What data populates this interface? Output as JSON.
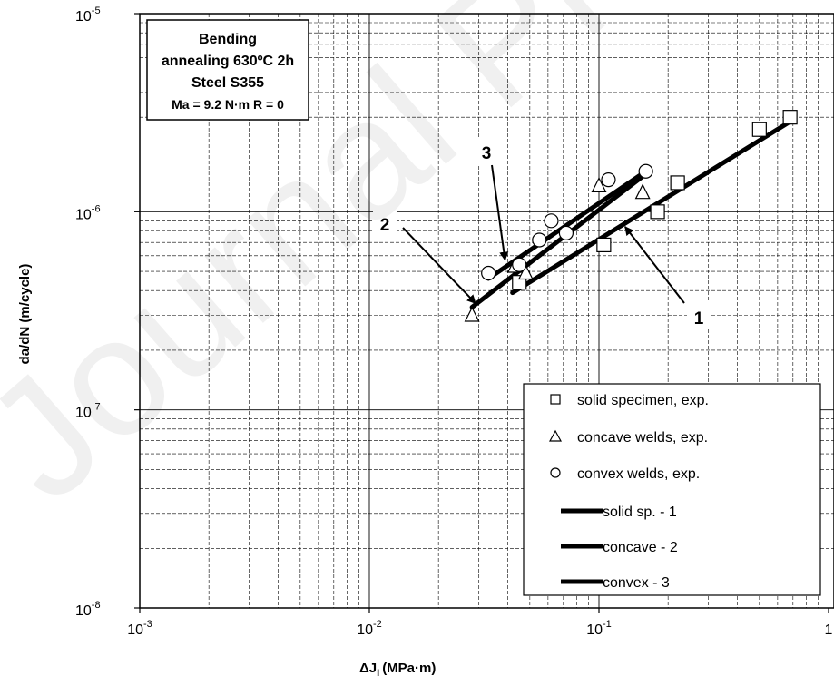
{
  "chart_data": {
    "type": "scatter",
    "xscale": "log",
    "yscale": "log",
    "xlim": [
      0.001,
      1
    ],
    "ylim": [
      1e-08,
      1e-05
    ],
    "xlabel": "ΔJ",
    "xlabel_sub": "I",
    "xlabel_units": "(MPa·m)",
    "ylabel": "da/dN (m/cycle)",
    "x_ticks": [
      {
        "value": 0.001,
        "base": "10",
        "exp": "-3"
      },
      {
        "value": 0.01,
        "base": "10",
        "exp": "-2"
      },
      {
        "value": 0.1,
        "base": "10",
        "exp": "-1"
      },
      {
        "value": 1,
        "base": "1",
        "exp": ""
      }
    ],
    "y_ticks": [
      {
        "value": 1e-08,
        "base": "10",
        "exp": "-8"
      },
      {
        "value": 1e-07,
        "base": "10",
        "exp": "-7"
      },
      {
        "value": 1e-06,
        "base": "10",
        "exp": "-6"
      },
      {
        "value": 1e-05,
        "base": "10",
        "exp": "-5"
      }
    ],
    "grid": true,
    "info_box": [
      "Bending",
      "annealing 630ºC 2h",
      "Steel S355",
      "Ma = 9.2 N·m R = 0"
    ],
    "legend_position": "bottom-right",
    "series": [
      {
        "name": "solid specimen, exp.",
        "marker": "square",
        "points": [
          [
            0.045,
            4.4e-07
          ],
          [
            0.105,
            6.8e-07
          ],
          [
            0.18,
            1e-06
          ],
          [
            0.22,
            1.4e-06
          ],
          [
            0.5,
            2.6e-06
          ],
          [
            0.68,
            3e-06
          ]
        ]
      },
      {
        "name": "concave welds, exp.",
        "marker": "triangle",
        "points": [
          [
            0.028,
            3e-07
          ],
          [
            0.043,
            5.3e-07
          ],
          [
            0.048,
            4.9e-07
          ],
          [
            0.1,
            1.35e-06
          ],
          [
            0.155,
            1.25e-06
          ]
        ]
      },
      {
        "name": "convex welds, exp.",
        "marker": "circle",
        "points": [
          [
            0.033,
            4.9e-07
          ],
          [
            0.045,
            5.4e-07
          ],
          [
            0.055,
            7.2e-07
          ],
          [
            0.062,
            9e-07
          ],
          [
            0.072,
            7.8e-07
          ],
          [
            0.11,
            1.45e-06
          ],
          [
            0.16,
            1.6e-06
          ]
        ]
      },
      {
        "name": "solid sp. - 1",
        "type": "line",
        "points": [
          [
            0.042,
            3.9e-07
          ],
          [
            0.68,
            2.85e-06
          ]
        ]
      },
      {
        "name": "concave - 2",
        "type": "line",
        "points": [
          [
            0.028,
            3.3e-07
          ],
          [
            0.16,
            1.55e-06
          ]
        ]
      },
      {
        "name": "convex - 3",
        "type": "line",
        "points": [
          [
            0.033,
            4.6e-07
          ],
          [
            0.16,
            1.6e-06
          ]
        ]
      }
    ],
    "annotations": [
      {
        "text": "1",
        "target": [
          0.13,
          8.4e-07
        ]
      },
      {
        "text": "2",
        "target": [
          0.029,
          3.45e-07
        ]
      },
      {
        "text": "3",
        "target": [
          0.039,
          5.7e-07
        ]
      }
    ]
  }
}
